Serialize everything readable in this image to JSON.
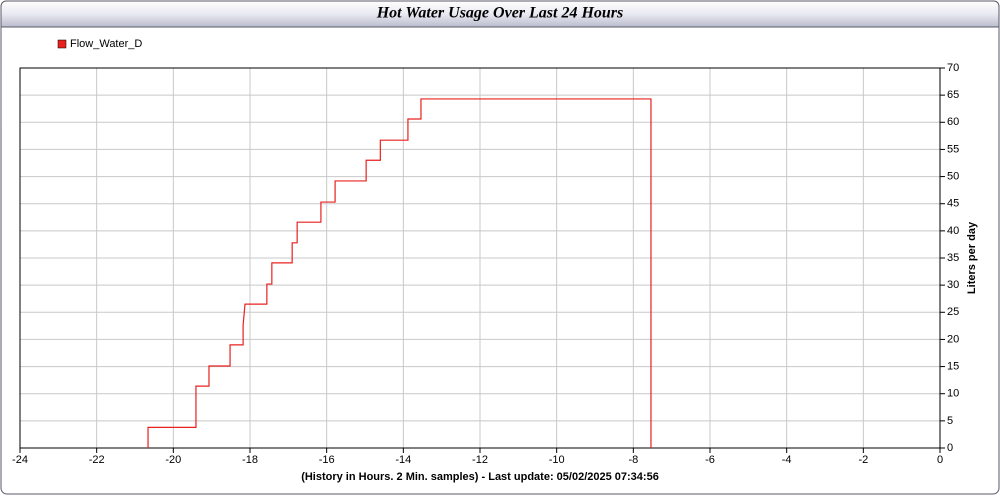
{
  "chart_data": {
    "type": "line",
    "title": "Hot Water Usage Over Last 24 Hours",
    "x_label": "(History in Hours. 2 Min. samples) - Last update: 05/02/2025 07:34:56",
    "y_label": "Liters per day",
    "x": [
      -20.66,
      -20.66,
      -19.41,
      -19.41,
      -19.07,
      -19.07,
      -18.52,
      -18.52,
      -18.18,
      -18.18,
      -18.13,
      -17.56,
      -17.56,
      -17.43,
      -17.43,
      -16.9,
      -16.9,
      -16.77,
      -16.77,
      -16.15,
      -16.15,
      -15.78,
      -15.78,
      -14.97,
      -14.97,
      -14.6,
      -14.6,
      -13.88,
      -13.88,
      -13.54,
      -13.54,
      -7.54,
      -7.54
    ],
    "series": [
      {
        "name": "Flow_Water_D",
        "color": "#e8201e",
        "values": [
          0,
          3.8,
          3.8,
          11.4,
          11.4,
          15.1,
          15.1,
          19,
          19,
          22.6,
          26.5,
          26.5,
          30.2,
          30.2,
          34.1,
          34.1,
          37.8,
          37.8,
          41.6,
          41.6,
          45.3,
          45.3,
          49.2,
          49.2,
          53,
          53,
          56.7,
          56.7,
          60.6,
          60.6,
          64.3,
          64.3,
          0
        ]
      }
    ],
    "xlim": [
      -24,
      0
    ],
    "xticks": [
      -24,
      -22,
      -20,
      -18,
      -16,
      -14,
      -12,
      -10,
      -8,
      -6,
      -4,
      -2,
      0
    ],
    "ylim": [
      0,
      70
    ],
    "yticks": [
      0,
      5,
      10,
      15,
      20,
      25,
      30,
      35,
      40,
      45,
      50,
      55,
      60,
      65,
      70
    ],
    "grid": true,
    "legend": "top-left"
  }
}
